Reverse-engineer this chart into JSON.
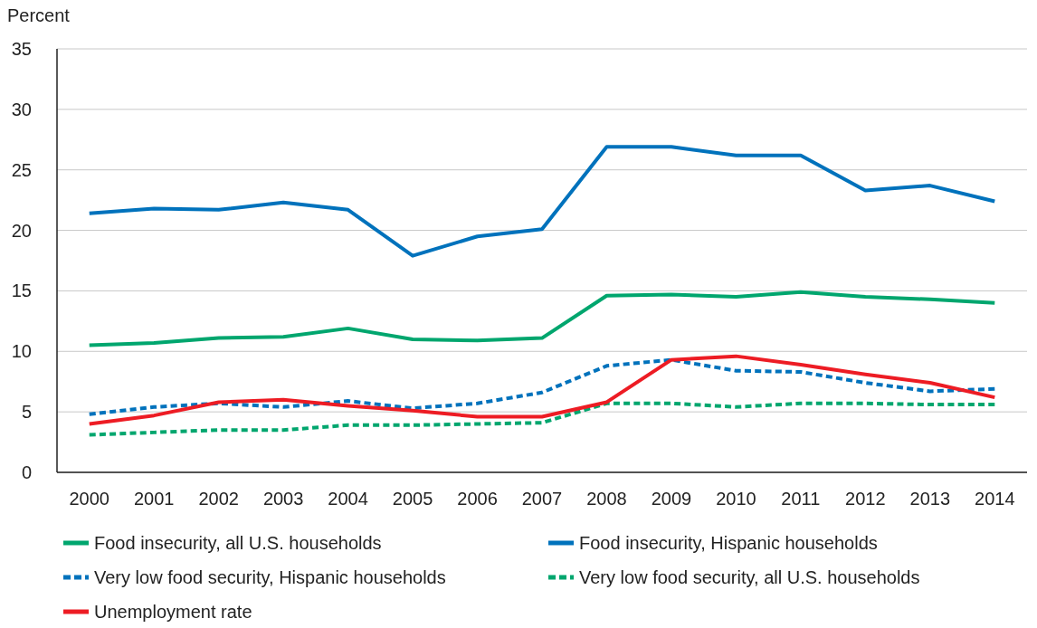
{
  "chart_data": {
    "type": "line",
    "ylabel": "Percent",
    "categories": [
      "2000",
      "2001",
      "2002",
      "2003",
      "2004",
      "2005",
      "2006",
      "2007",
      "2008",
      "2009",
      "2010",
      "2011",
      "2012",
      "2013",
      "2014"
    ],
    "ylim": [
      0,
      35
    ],
    "yticks": [
      0,
      5,
      10,
      15,
      20,
      25,
      30,
      35
    ],
    "grid": "y",
    "legend": "bottom",
    "marker": "none",
    "series": [
      {
        "name": "Food insecurity, all U.S. households",
        "color": "#00a66e",
        "line_style": "solid",
        "values": [
          10.5,
          10.7,
          11.1,
          11.2,
          11.9,
          11.0,
          10.9,
          11.1,
          14.6,
          14.7,
          14.5,
          14.9,
          14.5,
          14.3,
          14.0
        ]
      },
      {
        "name": "Food insecurity, Hispanic households",
        "color": "#0072bc",
        "line_style": "solid",
        "values": [
          21.4,
          21.8,
          21.7,
          22.3,
          21.7,
          17.9,
          19.5,
          20.1,
          26.9,
          26.9,
          26.2,
          26.2,
          23.3,
          23.7,
          22.4
        ]
      },
      {
        "name": "Very low food security, Hispanic households",
        "color": "#0072bc",
        "line_style": "dashed",
        "values": [
          4.8,
          5.4,
          5.7,
          5.4,
          5.9,
          5.3,
          5.7,
          6.6,
          8.8,
          9.3,
          8.4,
          8.3,
          7.4,
          6.7,
          6.9
        ]
      },
      {
        "name": "Very low food security, all U.S. households",
        "color": "#00a66e",
        "line_style": "dashed",
        "values": [
          3.1,
          3.3,
          3.5,
          3.5,
          3.9,
          3.9,
          4.0,
          4.1,
          5.7,
          5.7,
          5.4,
          5.7,
          5.7,
          5.6,
          5.6
        ]
      },
      {
        "name": "Unemployment rate",
        "color": "#ed1c24",
        "line_style": "solid",
        "values": [
          4.0,
          4.7,
          5.8,
          6.0,
          5.5,
          5.1,
          4.6,
          4.6,
          5.8,
          9.3,
          9.6,
          8.9,
          8.1,
          7.4,
          6.2
        ]
      }
    ]
  }
}
